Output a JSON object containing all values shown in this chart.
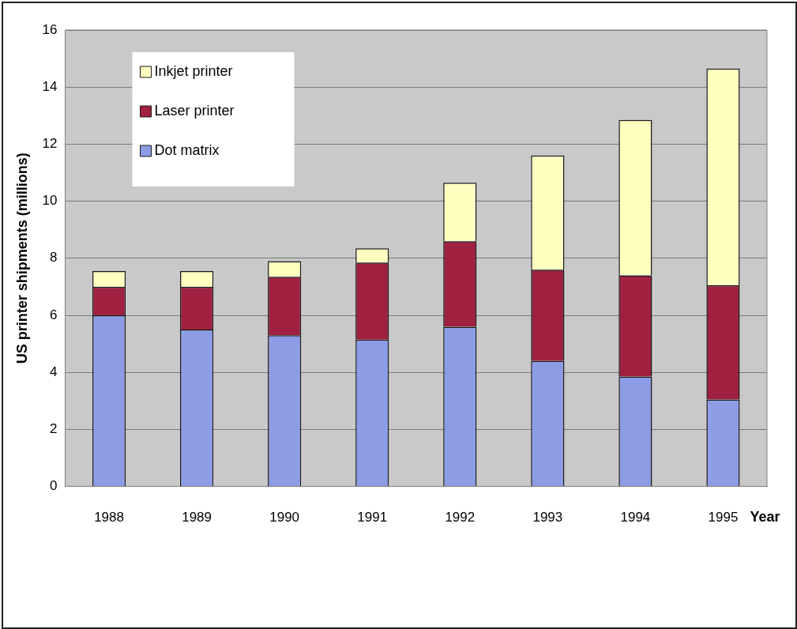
{
  "chart_data": {
    "type": "bar",
    "stacked": true,
    "ylabel": "US printer shipments (millions)",
    "xlabel": "Year",
    "categories": [
      "1988",
      "1989",
      "1990",
      "1991",
      "1992",
      "1993",
      "1994",
      "1995"
    ],
    "series": [
      {
        "name": "Dot matrix",
        "color": "#8c9de6",
        "values": [
          6.0,
          5.5,
          5.3,
          5.15,
          5.6,
          4.4,
          3.85,
          3.05
        ]
      },
      {
        "name": "Laser printer",
        "color": "#a0203f",
        "values": [
          1.0,
          1.5,
          2.05,
          2.7,
          3.0,
          3.2,
          3.55,
          4.0
        ]
      },
      {
        "name": "Inkjet printer",
        "color": "#ffffc0",
        "values": [
          0.55,
          0.55,
          0.55,
          0.5,
          2.05,
          4.0,
          5.45,
          7.6
        ]
      }
    ],
    "ylim": [
      0,
      16
    ],
    "yticks": [
      0,
      2,
      4,
      6,
      8,
      10,
      12,
      14,
      16
    ],
    "grid": "y",
    "legend": "top left"
  }
}
